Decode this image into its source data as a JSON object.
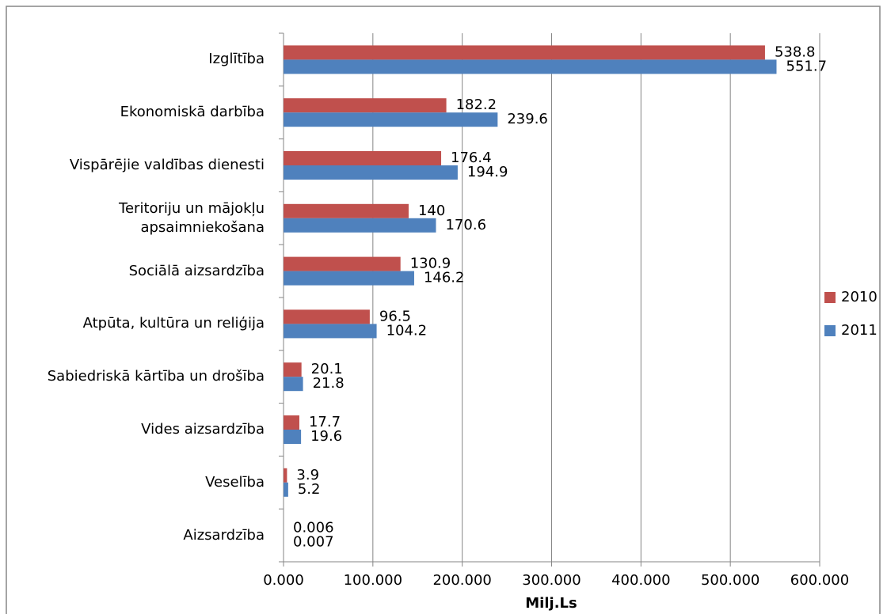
{
  "chart_data": {
    "type": "bar",
    "orientation": "horizontal",
    "xlabel": "Milj.Ls",
    "categories": [
      "Izglītība",
      "Ekonomiskā darbība",
      "Vispārējie valdības dienesti",
      "Teritoriju un mājokļu apsaimniekošana",
      "Sociālā aizsardzība",
      "Atpūta, kultūra un reliģija",
      "Sabiedriskā kārtība un drošība",
      "Vides aizsardzība",
      "Veselība",
      "Aizsardzība"
    ],
    "series": [
      {
        "name": "2010",
        "color": "#c0504d",
        "values": [
          538.8,
          182.2,
          176.4,
          140,
          130.9,
          96.5,
          20.1,
          17.7,
          3.9,
          0.006
        ]
      },
      {
        "name": "2011",
        "color": "#4f81bd",
        "values": [
          551.7,
          239.6,
          194.9,
          170.6,
          146.2,
          104.2,
          21.8,
          19.6,
          5.2,
          0.007
        ]
      }
    ],
    "xlim": [
      0,
      600
    ],
    "xticks": [
      {
        "value": 0,
        "label": "0.000"
      },
      {
        "value": 100,
        "label": "100.000"
      },
      {
        "value": 200,
        "label": "200.000"
      },
      {
        "value": 300,
        "label": "300.000"
      },
      {
        "value": 400,
        "label": "400.000"
      },
      {
        "value": 500,
        "label": "500.000"
      },
      {
        "value": 600,
        "label": "600.000"
      }
    ],
    "grid": true,
    "legend": "right"
  }
}
